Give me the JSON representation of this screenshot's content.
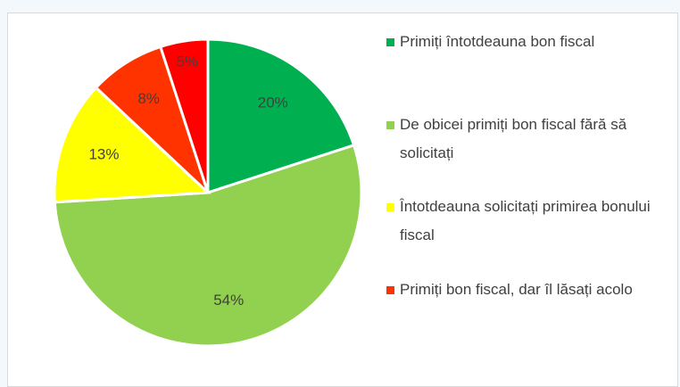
{
  "chart_data": {
    "type": "pie",
    "categories": [
      "Primiți întotdeauna bon fiscal",
      "De obicei primiți bon fiscal fără să solicitați",
      "Întotdeauna solicitați primirea bonului fiscal",
      "Primiți bon fiscal, dar îl lăsați acolo",
      null
    ],
    "values": [
      20,
      54,
      13,
      8,
      5
    ],
    "value_labels": [
      "20%",
      "54%",
      "13%",
      "8%",
      "5%"
    ],
    "colors": [
      "#00b050",
      "#92d050",
      "#ffff00",
      "#ff3300",
      "#ff0000"
    ],
    "legend": "right"
  }
}
